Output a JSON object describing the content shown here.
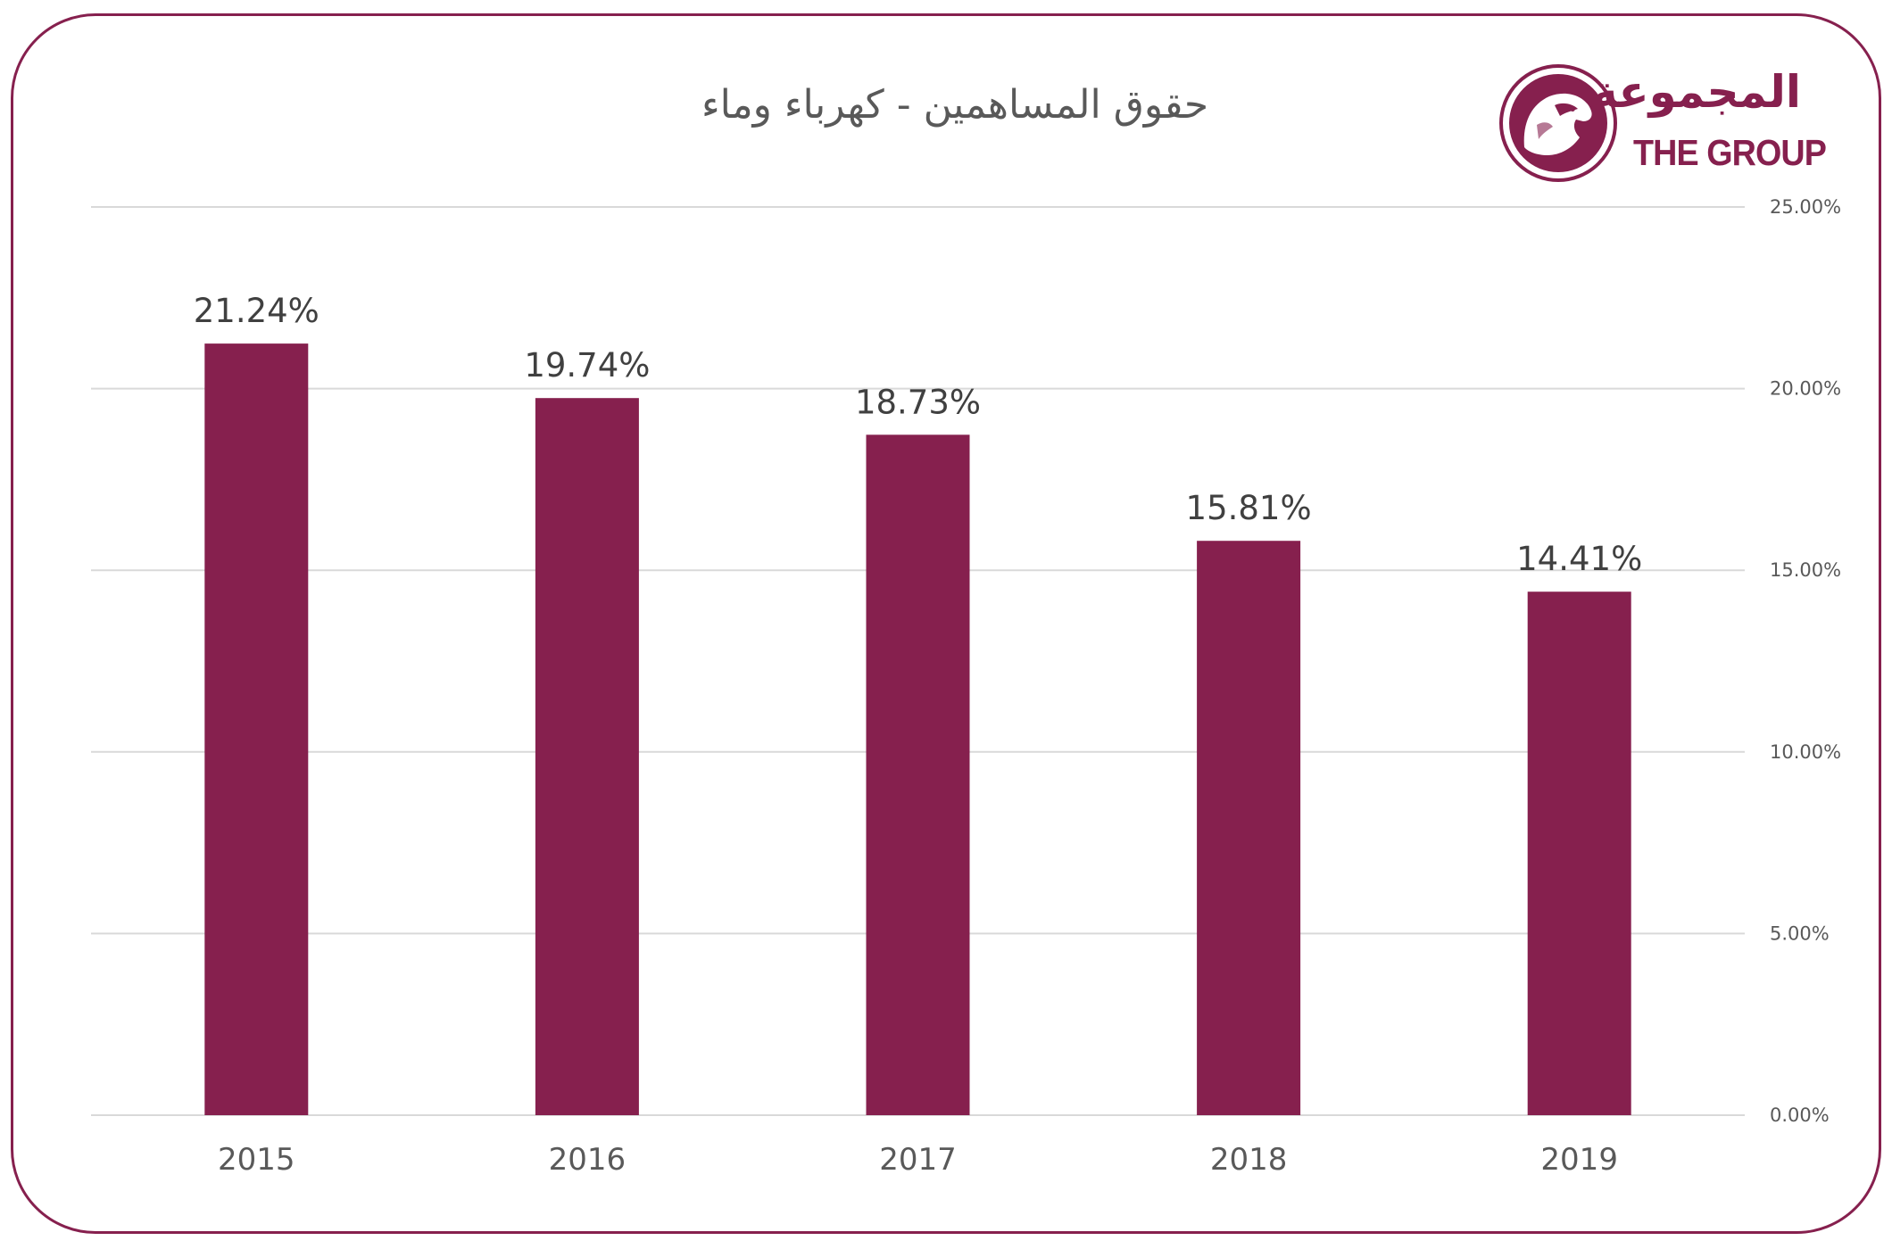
{
  "colors": {
    "brand": "#86204e",
    "bar": "#86204e",
    "gridline": "#d9d9d9",
    "text": "#595959"
  },
  "logo": {
    "arabic": "المجموعة",
    "english": "THE GROUP",
    "emblem_icon": "falcon-emblem-icon"
  },
  "chart_data": {
    "type": "bar",
    "title": "حقوق المساهمين - كهرباء وماء",
    "xlabel": "",
    "ylabel": "",
    "categories": [
      "2015",
      "2016",
      "2017",
      "2018",
      "2019"
    ],
    "values": [
      21.24,
      19.74,
      18.73,
      15.81,
      14.41
    ],
    "data_labels": [
      "21.24%",
      "19.74%",
      "18.73%",
      "15.81%",
      "14.41%"
    ],
    "ylim": [
      0,
      25
    ],
    "yticks": [
      0,
      5,
      10,
      15,
      20,
      25
    ],
    "ytick_labels": [
      "0.00%",
      "5.00%",
      "10.00%",
      "15.00%",
      "20.00%",
      "25.00%"
    ],
    "y_axis_side": "right",
    "grid": true,
    "legend": "none"
  }
}
